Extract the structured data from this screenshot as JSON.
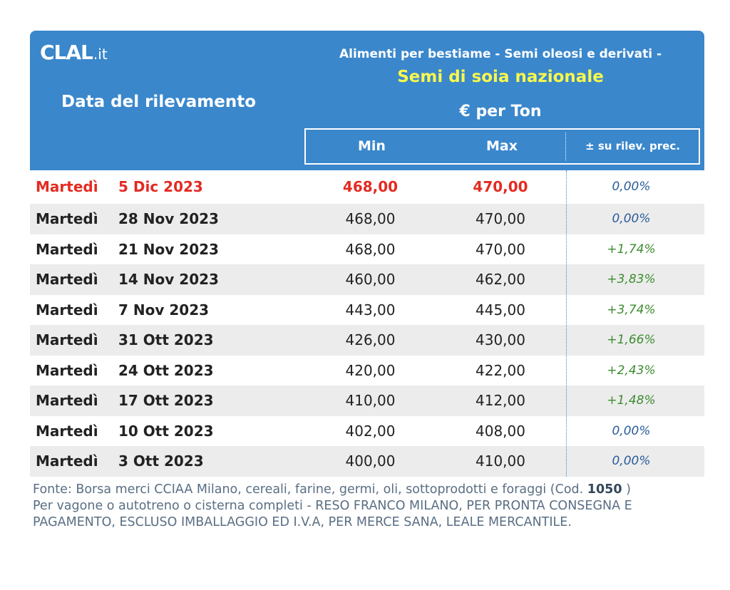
{
  "logo": {
    "main": "CLAL",
    "tld": ".it"
  },
  "header": {
    "date_label": "Data del rilevamento",
    "category": "Alimenti per bestiame - Semi oleosi e derivati -",
    "product": "Semi di soia nazionale",
    "unit": "€ per Ton",
    "col_min": "Min",
    "col_max": "Max",
    "col_var": "± su rilev. prec."
  },
  "colors": {
    "header_bg": "#3a87cc",
    "product_title": "#f8f84c",
    "current_row": "#e32b22",
    "positive": "#3c8d2f",
    "zero": "#2a5b9a"
  },
  "rows": [
    {
      "day": "Martedì",
      "date": "5 Dic 2023",
      "min": "468,00",
      "max": "470,00",
      "var": "0,00%",
      "trend": "zero"
    },
    {
      "day": "Martedì",
      "date": "28 Nov 2023",
      "min": "468,00",
      "max": "470,00",
      "var": "0,00%",
      "trend": "zero"
    },
    {
      "day": "Martedì",
      "date": "21 Nov 2023",
      "min": "468,00",
      "max": "470,00",
      "var": "+1,74%",
      "trend": "up"
    },
    {
      "day": "Martedì",
      "date": "14 Nov 2023",
      "min": "460,00",
      "max": "462,00",
      "var": "+3,83%",
      "trend": "up"
    },
    {
      "day": "Martedì",
      "date": "7 Nov 2023",
      "min": "443,00",
      "max": "445,00",
      "var": "+3,74%",
      "trend": "up"
    },
    {
      "day": "Martedì",
      "date": "31 Ott 2023",
      "min": "426,00",
      "max": "430,00",
      "var": "+1,66%",
      "trend": "up"
    },
    {
      "day": "Martedì",
      "date": "24 Ott 2023",
      "min": "420,00",
      "max": "422,00",
      "var": "+2,43%",
      "trend": "up"
    },
    {
      "day": "Martedì",
      "date": "17 Ott 2023",
      "min": "410,00",
      "max": "412,00",
      "var": "+1,48%",
      "trend": "up"
    },
    {
      "day": "Martedì",
      "date": "10 Ott 2023",
      "min": "402,00",
      "max": "408,00",
      "var": "0,00%",
      "trend": "zero"
    },
    {
      "day": "Martedì",
      "date": "3 Ott 2023",
      "min": "400,00",
      "max": "410,00",
      "var": "0,00%",
      "trend": "zero"
    }
  ],
  "footer": {
    "source_prefix": "Fonte: Borsa merci CCIAA Milano, cereali, farine, germi, oli, sottoprodotti e foraggi (Cod.",
    "code": "1050",
    "source_suffix": " )",
    "terms": "Per vagone o autotreno o cisterna completi - RESO FRANCO MILANO, PER PRONTA CONSEGNA E PAGAMENTO, ESCLUSO IMBALLAGGIO ED I.V.A, PER MERCE SANA, LEALE MERCANTILE."
  }
}
